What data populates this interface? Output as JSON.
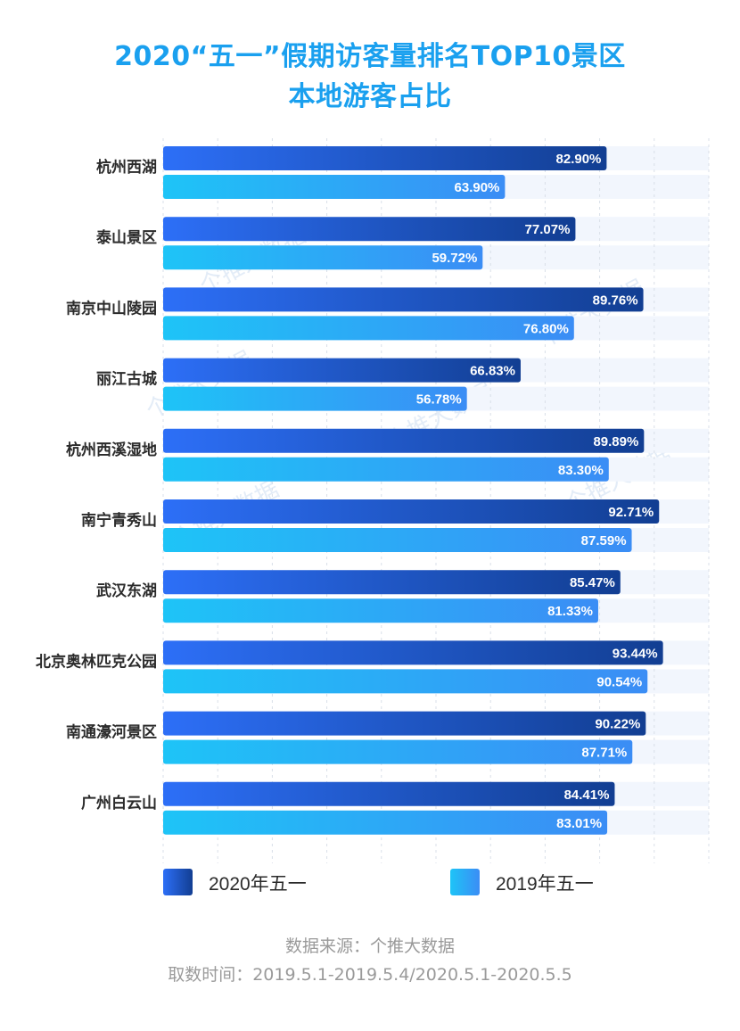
{
  "header": {
    "title_line1": "2020“五一”假期访客量排名TOP10景区",
    "title_line2": "本地游客占比"
  },
  "footer": {
    "source": "数据来源：个推大数据",
    "period": "取数时间：2019.5.1-2019.5.4/2020.5.1-2020.5.5"
  },
  "colors": {
    "series_2020_start": "#2d6ff7",
    "series_2020_end": "#123e92",
    "series_2019_start": "#1ec4f7",
    "series_2019_end": "#3b8df5",
    "track": "#f2f6fd",
    "grid": "#d9dfe8",
    "category_label": "#2b2b2b",
    "title": "#1aa0ef"
  },
  "chart_data": {
    "type": "bar",
    "orientation": "horizontal",
    "title": "2020“五一”假期访客量排名TOP10景区本地游客占比",
    "xlim": [
      0,
      100
    ],
    "unit": "%",
    "grid": true,
    "legend_position": "bottom",
    "categories": [
      "杭州西湖",
      "泰山景区",
      "南京中山陵园",
      "丽江古城",
      "杭州西溪湿地",
      "南宁青秀山",
      "武汉东湖",
      "北京奥林匹克公园",
      "南通濠河景区",
      "广州白云山"
    ],
    "series": [
      {
        "name": "2020年五一",
        "values": [
          82.9,
          77.07,
          89.76,
          66.83,
          89.89,
          92.71,
          85.47,
          93.44,
          90.22,
          84.41
        ],
        "labels": [
          "82.90%",
          "77.07%",
          "89.76%",
          "66.83%",
          "89.89%",
          "92.71%",
          "85.47%",
          "93.44%",
          "90.22%",
          "84.41%"
        ]
      },
      {
        "name": "2019年五一",
        "values": [
          63.9,
          59.72,
          76.8,
          56.78,
          83.3,
          87.59,
          81.33,
          90.54,
          87.71,
          83.01
        ],
        "labels": [
          "63.90%",
          "59.72%",
          "76.80%",
          "56.78%",
          "83.30%",
          "87.59%",
          "81.33%",
          "90.54%",
          "87.71%",
          "83.01%"
        ]
      }
    ],
    "watermark": "个推大数据"
  }
}
